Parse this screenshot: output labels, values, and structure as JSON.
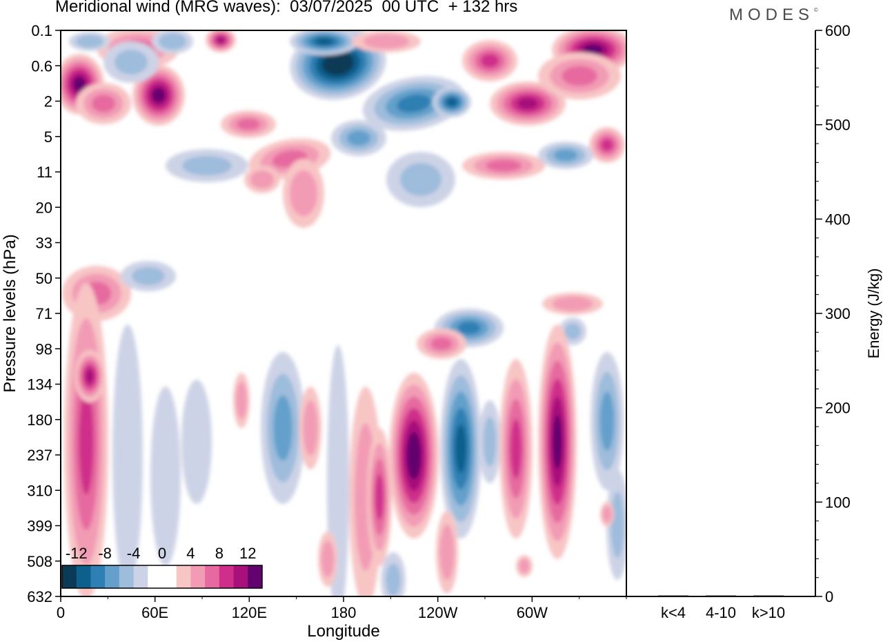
{
  "title": "Meridional wind (MRG waves):  03/07/2025  00 UTC  + 132 hrs",
  "logo": "MODES",
  "logo_mark": "©",
  "colors": {
    "neg": [
      "#0b3a57",
      "#0d5f8c",
      "#2e7fb3",
      "#64a0cb",
      "#9ebcdc",
      "#cdd3e6"
    ],
    "zero": "#ffffff",
    "pos": [
      "#f8c5c5",
      "#f29bb5",
      "#e66a9f",
      "#cf2f8a",
      "#a8117b",
      "#63046e"
    ]
  },
  "chart_data": [
    {
      "type": "contour",
      "title": "Meridional wind (MRG waves)",
      "xlabel": "Longitude",
      "ylabel": "Pressure levels (hPa)",
      "x_ticks": [
        "0",
        "60E",
        "120E",
        "180",
        "120W",
        "60W"
      ],
      "x_tick_degrees": [
        0,
        60,
        120,
        180,
        240,
        300
      ],
      "x_range": [
        0,
        360
      ],
      "y_ticks": [
        "0.1",
        "0.6",
        "2",
        "5",
        "11",
        "20",
        "33",
        "50",
        "71",
        "98",
        "134",
        "180",
        "237",
        "310",
        "399",
        "508",
        "632"
      ],
      "colorbar": {
        "labels": [
          "-12",
          "-8",
          "-4",
          "0",
          "4",
          "8",
          "12"
        ],
        "levels": [
          -14,
          -12,
          -10,
          -8,
          -6,
          -4,
          -2,
          2,
          4,
          6,
          8,
          10,
          12,
          14
        ]
      },
      "features": [
        {
          "name": "upper negative core",
          "lon": 180,
          "pressure": "0.6",
          "value": -14
        },
        {
          "name": "upper positive core",
          "lon": 12,
          "pressure": "0.6-2",
          "value": 12
        },
        {
          "name": "upper positive core",
          "lon": 62,
          "pressure": "2",
          "value": 12
        },
        {
          "name": "upper positive core",
          "lon": 350,
          "pressure": "0.1-0.6",
          "value": 12
        },
        {
          "name": "tropospheric positive core",
          "lon": 226,
          "pressure": "237",
          "value": 13
        },
        {
          "name": "tropospheric negative core",
          "lon": 255,
          "pressure": "237",
          "value": -10
        },
        {
          "name": "tropospheric positive core",
          "lon": 318,
          "pressure": "237",
          "value": 12
        }
      ]
    },
    {
      "type": "bar",
      "ylabel": "Energy (J/kg)",
      "categories": [
        "k<4",
        "4-10",
        "k>10"
      ],
      "values": [
        0,
        1,
        0
      ],
      "ylim": [
        0,
        600
      ],
      "y_ticks": [
        "0",
        "100",
        "200",
        "300",
        "400",
        "500",
        "600"
      ]
    }
  ]
}
